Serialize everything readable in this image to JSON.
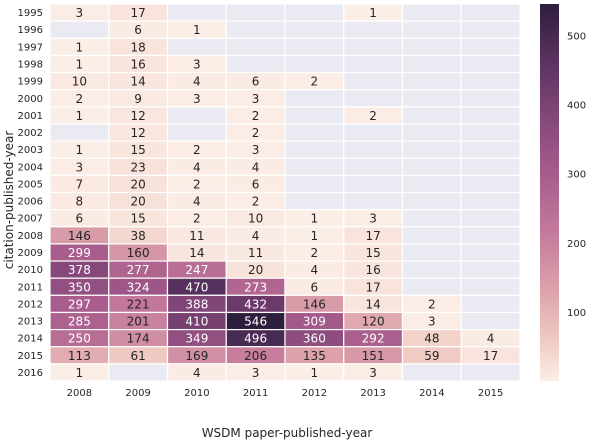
{
  "chart_data": {
    "type": "heatmap",
    "xlabel": "WSDM paper-published-year",
    "ylabel": "citation-published-year",
    "x_categories": [
      "2008",
      "2009",
      "2010",
      "2011",
      "2012",
      "2013",
      "2014",
      "2015"
    ],
    "y_categories": [
      "1995",
      "1996",
      "1997",
      "1998",
      "1999",
      "2000",
      "2001",
      "2002",
      "2003",
      "2004",
      "2005",
      "2006",
      "2007",
      "2008",
      "2009",
      "2010",
      "2011",
      "2012",
      "2013",
      "2014",
      "2015",
      "2016"
    ],
    "values": [
      [
        3,
        17,
        null,
        null,
        null,
        1,
        null,
        null
      ],
      [
        null,
        6,
        1,
        null,
        null,
        null,
        null,
        null
      ],
      [
        1,
        18,
        null,
        null,
        null,
        null,
        null,
        null
      ],
      [
        1,
        16,
        3,
        null,
        null,
        null,
        null,
        null
      ],
      [
        10,
        14,
        4,
        6,
        2,
        null,
        null,
        null
      ],
      [
        2,
        9,
        3,
        3,
        null,
        null,
        null,
        null
      ],
      [
        1,
        12,
        null,
        2,
        null,
        2,
        null,
        null
      ],
      [
        null,
        12,
        null,
        2,
        null,
        null,
        null,
        null
      ],
      [
        1,
        15,
        2,
        3,
        null,
        null,
        null,
        null
      ],
      [
        3,
        23,
        4,
        4,
        null,
        null,
        null,
        null
      ],
      [
        7,
        20,
        2,
        6,
        null,
        null,
        null,
        null
      ],
      [
        8,
        20,
        4,
        2,
        null,
        null,
        null,
        null
      ],
      [
        6,
        15,
        2,
        10,
        1,
        3,
        null,
        null
      ],
      [
        146,
        38,
        11,
        4,
        1,
        17,
        null,
        null
      ],
      [
        299,
        160,
        14,
        11,
        2,
        15,
        null,
        null
      ],
      [
        378,
        277,
        247,
        20,
        4,
        16,
        null,
        null
      ],
      [
        350,
        324,
        470,
        273,
        6,
        17,
        null,
        null
      ],
      [
        297,
        221,
        388,
        432,
        146,
        14,
        2,
        null
      ],
      [
        285,
        201,
        410,
        546,
        309,
        120,
        3,
        null
      ],
      [
        250,
        174,
        349,
        496,
        360,
        292,
        48,
        4
      ],
      [
        113,
        61,
        169,
        206,
        135,
        151,
        59,
        17
      ],
      [
        1,
        null,
        4,
        3,
        1,
        3,
        null,
        null
      ]
    ],
    "colorbar_ticks": [
      100,
      200,
      300,
      400,
      500
    ],
    "vmin": 1,
    "vmax": 546,
    "colors": {
      "missing": "#eaeaf2",
      "low": "#fbeee6",
      "high": "#2d1e3e",
      "text_light": "#ffffff",
      "text_dark": "#262626"
    }
  }
}
